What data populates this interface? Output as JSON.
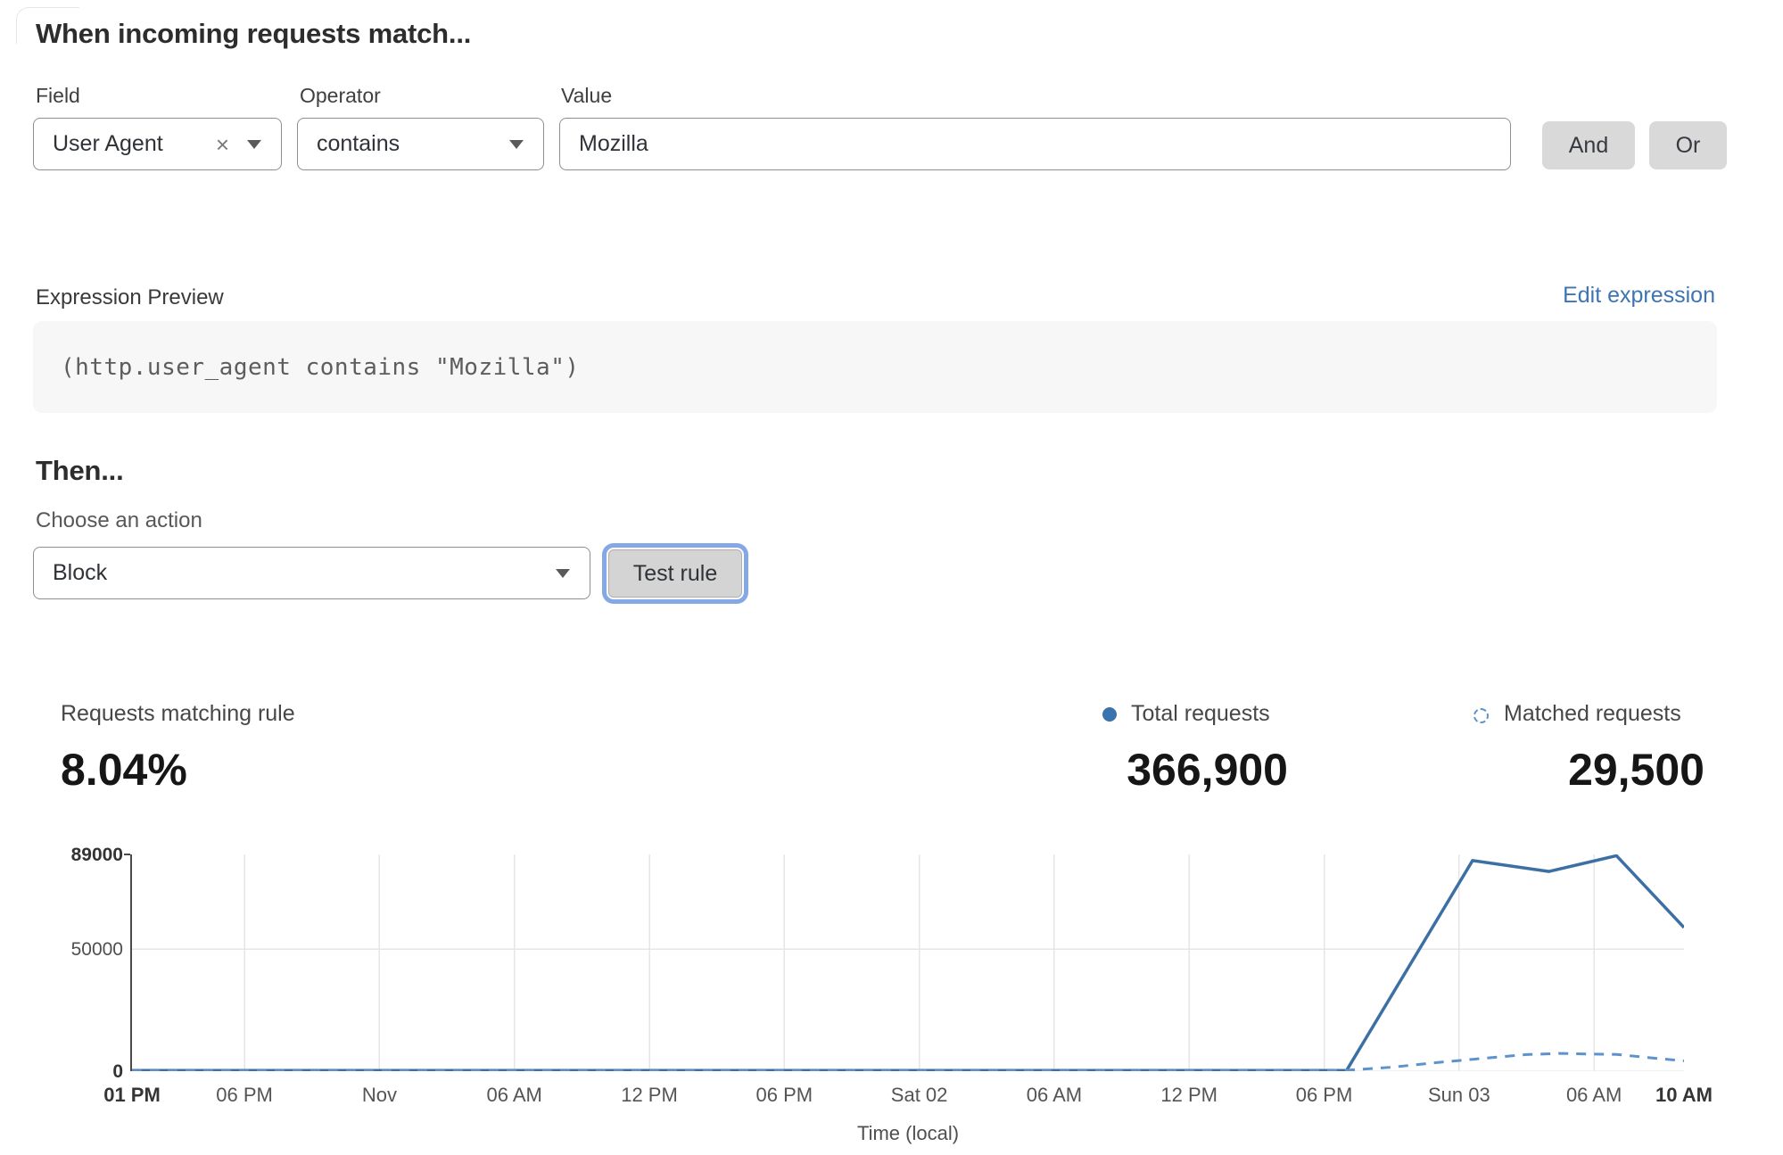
{
  "rule_builder": {
    "heading": "When incoming requests match...",
    "field": {
      "label": "Field",
      "value": "User Agent"
    },
    "operator": {
      "label": "Operator",
      "value": "contains"
    },
    "value": {
      "label": "Value",
      "value": "Mozilla"
    },
    "and_label": "And",
    "or_label": "Or"
  },
  "icons": {
    "clear": "×"
  },
  "expression": {
    "label": "Expression Preview",
    "edit_link": "Edit expression",
    "code": "(http.user_agent contains \"Mozilla\")"
  },
  "action": {
    "heading": "Then...",
    "choose_label": "Choose an action",
    "selected": "Block",
    "test_button": "Test rule"
  },
  "stats": {
    "matching": {
      "label": "Requests matching rule",
      "value": "8.04%"
    },
    "total": {
      "label": "Total requests",
      "value": "366,900"
    },
    "matched": {
      "label": "Matched requests",
      "value": "29,500"
    }
  },
  "colors": {
    "link_blue": "#3e74b3",
    "line_solid": "#3c70a4",
    "line_dashed": "#5e92cc",
    "legend_dot": "#3b73ad",
    "focus_ring": "#84a7e6",
    "grid": "#e6e6e6",
    "axis": "#4a4a4a"
  },
  "chart_data": {
    "type": "line",
    "xlabel": "Time (local)",
    "ylim": [
      0,
      89000
    ],
    "x_range_hours": [
      0,
      69
    ],
    "grid": true,
    "legend_position": "top-right",
    "y_ticks": [
      {
        "label": "89000",
        "value": 89000,
        "bold": true
      },
      {
        "label": "50000",
        "value": 50000,
        "bold": false
      },
      {
        "label": "0",
        "value": 0,
        "bold": true
      }
    ],
    "x_ticks": [
      {
        "label": "01 PM",
        "h": 0,
        "bold": true
      },
      {
        "label": "06 PM",
        "h": 5,
        "bold": false
      },
      {
        "label": "Nov",
        "h": 11,
        "bold": false
      },
      {
        "label": "06 AM",
        "h": 17,
        "bold": false
      },
      {
        "label": "12 PM",
        "h": 23,
        "bold": false
      },
      {
        "label": "06 PM",
        "h": 29,
        "bold": false
      },
      {
        "label": "Sat 02",
        "h": 35,
        "bold": false
      },
      {
        "label": "06 AM",
        "h": 41,
        "bold": false
      },
      {
        "label": "12 PM",
        "h": 47,
        "bold": false
      },
      {
        "label": "06 PM",
        "h": 53,
        "bold": false
      },
      {
        "label": "Sun 03",
        "h": 59,
        "bold": false
      },
      {
        "label": "06 AM",
        "h": 65,
        "bold": false
      },
      {
        "label": "10 AM",
        "h": 69,
        "bold": true
      }
    ],
    "series": [
      {
        "name": "Total requests",
        "style": "solid",
        "points": [
          [
            0,
            250
          ],
          [
            5,
            250
          ],
          [
            11,
            250
          ],
          [
            17,
            250
          ],
          [
            23,
            250
          ],
          [
            29,
            250
          ],
          [
            35,
            250
          ],
          [
            41,
            250
          ],
          [
            47,
            250
          ],
          [
            53,
            250
          ],
          [
            54,
            300
          ],
          [
            59.6,
            86500
          ],
          [
            63,
            82000
          ],
          [
            66,
            88500
          ],
          [
            69,
            59000
          ]
        ]
      },
      {
        "name": "Matched requests",
        "style": "dashed",
        "points": [
          [
            0,
            120
          ],
          [
            5,
            120
          ],
          [
            11,
            120
          ],
          [
            17,
            120
          ],
          [
            23,
            120
          ],
          [
            29,
            120
          ],
          [
            35,
            120
          ],
          [
            41,
            120
          ],
          [
            47,
            120
          ],
          [
            53,
            150
          ],
          [
            54,
            350
          ],
          [
            56,
            1600
          ],
          [
            58,
            3500
          ],
          [
            60,
            5200
          ],
          [
            62,
            6800
          ],
          [
            63.5,
            7300
          ],
          [
            65,
            7000
          ],
          [
            66,
            6900
          ],
          [
            67.5,
            5500
          ],
          [
            69,
            4200
          ]
        ]
      }
    ]
  }
}
